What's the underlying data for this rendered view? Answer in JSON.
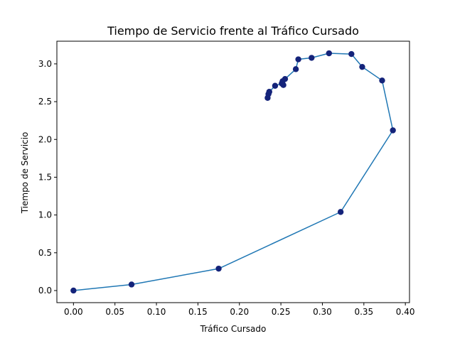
{
  "chart_data": {
    "type": "line",
    "title": "Tiempo de Servicio frente al Tráfico Cursado",
    "xlabel": "Tráfico Cursado",
    "ylabel": "Tiempo de Servicio",
    "xlim": [
      -0.02,
      0.405
    ],
    "ylim": [
      -0.16,
      3.3
    ],
    "xticks": [
      0.0,
      0.05,
      0.1,
      0.15,
      0.2,
      0.25,
      0.3,
      0.35,
      0.4
    ],
    "xtick_labels": [
      "0.00",
      "0.05",
      "0.10",
      "0.15",
      "0.20",
      "0.25",
      "0.30",
      "0.35",
      "0.40"
    ],
    "yticks": [
      0.0,
      0.5,
      1.0,
      1.5,
      2.0,
      2.5,
      3.0
    ],
    "ytick_labels": [
      "0.0",
      "0.5",
      "1.0",
      "1.5",
      "2.0",
      "2.5",
      "3.0"
    ],
    "grid": false,
    "series": [
      {
        "line_color": "#1f77b4",
        "marker_color": "#14237a",
        "x": [
          0.0,
          0.07,
          0.175,
          0.322,
          0.385,
          0.372,
          0.348,
          0.335,
          0.308,
          0.287,
          0.271,
          0.268,
          0.255,
          0.252,
          0.253,
          0.251,
          0.243,
          0.236,
          0.235,
          0.234
        ],
        "y": [
          0.0,
          0.08,
          0.29,
          1.04,
          2.12,
          2.78,
          2.96,
          3.13,
          3.14,
          3.08,
          3.06,
          2.93,
          2.8,
          2.77,
          2.72,
          2.74,
          2.71,
          2.63,
          2.6,
          2.55
        ]
      }
    ]
  }
}
